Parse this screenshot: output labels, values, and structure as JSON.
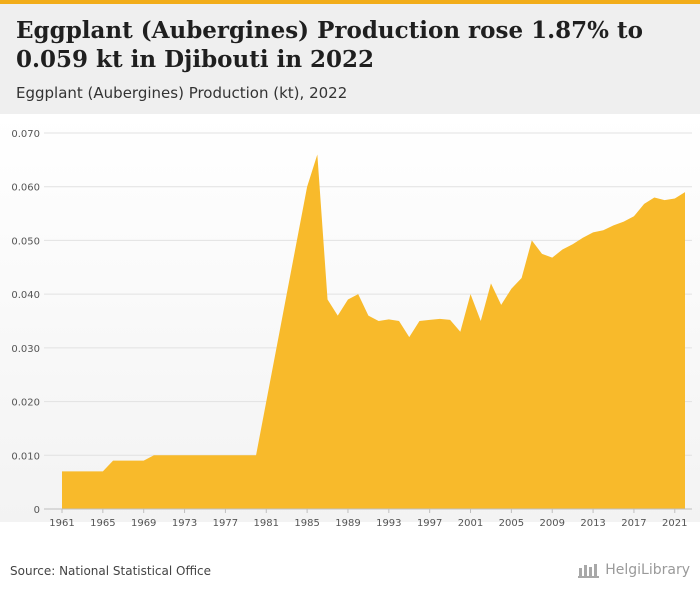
{
  "header": {
    "title": "Eggplant (Aubergines) Production rose 1.87% to 0.059 kt in Djibouti in 2022",
    "subtitle": "Eggplant (Aubergines) Production (kt), 2022"
  },
  "footer": {
    "source": "Source: National Statistical Office",
    "brand": "HelgiLibrary"
  },
  "colors": {
    "accent": "#f2ad1a",
    "area": "#f8ba2b",
    "header_bg": "#efefef"
  },
  "chart_data": {
    "type": "area",
    "title": "Eggplant (Aubergines) Production (kt), 2022",
    "xlabel": "",
    "ylabel": "",
    "xlim": [
      1961,
      2022
    ],
    "ylim": [
      0,
      0.07
    ],
    "yticks": [
      "0",
      "0.010",
      "0.020",
      "0.030",
      "0.040",
      "0.050",
      "0.060",
      "0.070"
    ],
    "ytick_values": [
      0,
      0.01,
      0.02,
      0.03,
      0.04,
      0.05,
      0.06,
      0.07
    ],
    "xticks": [
      "1961",
      "1965",
      "1969",
      "1973",
      "1977",
      "1981",
      "1985",
      "1989",
      "1993",
      "1997",
      "2001",
      "2005",
      "2009",
      "2013",
      "2017",
      "2021"
    ],
    "grid": true,
    "legend": "none",
    "series": [
      {
        "x": [
          1961,
          1962,
          1963,
          1964,
          1965,
          1966,
          1967,
          1968,
          1969,
          1970,
          1971,
          1972,
          1973,
          1974,
          1975,
          1976,
          1977,
          1978,
          1979,
          1980,
          1981,
          1982,
          1983,
          1984,
          1985,
          1986,
          1987,
          1988,
          1989,
          1990,
          1991,
          1992,
          1993,
          1994,
          1995,
          1996,
          1997,
          1998,
          1999,
          2000,
          2001,
          2002,
          2003,
          2004,
          2005,
          2006,
          2007,
          2008,
          2009,
          2010,
          2011,
          2012,
          2013,
          2014,
          2015,
          2016,
          2017,
          2018,
          2019,
          2020,
          2021,
          2022
        ],
        "values": [
          0.007,
          0.007,
          0.007,
          0.007,
          0.007,
          0.009,
          0.009,
          0.009,
          0.009,
          0.01,
          0.01,
          0.01,
          0.01,
          0.01,
          0.01,
          0.01,
          0.01,
          0.01,
          0.01,
          0.01,
          0.02,
          0.03,
          0.04,
          0.05,
          0.06,
          0.066,
          0.039,
          0.036,
          0.039,
          0.04,
          0.036,
          0.035,
          0.0353,
          0.035,
          0.032,
          0.035,
          0.0352,
          0.0354,
          0.0352,
          0.033,
          0.04,
          0.035,
          0.042,
          0.038,
          0.041,
          0.043,
          0.05,
          0.0475,
          0.0468,
          0.0483,
          0.0493,
          0.0505,
          0.0515,
          0.0519,
          0.0528,
          0.0535,
          0.0545,
          0.0568,
          0.058,
          0.0575,
          0.0578,
          0.059
        ]
      }
    ]
  }
}
